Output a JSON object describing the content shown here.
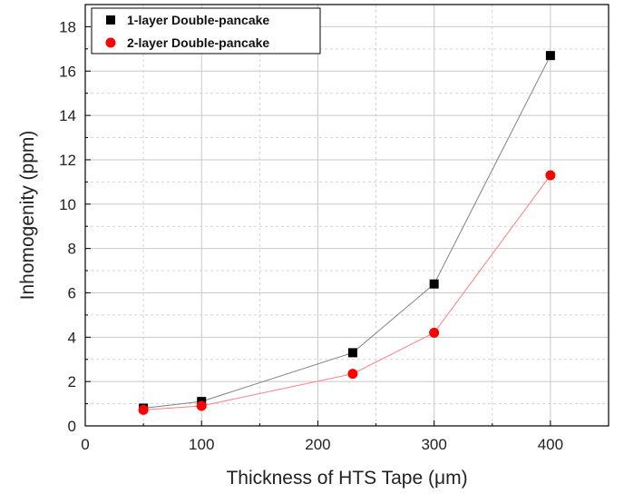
{
  "chart_data": {
    "type": "line",
    "xlabel": "Thickness of HTS Tape (μm)",
    "ylabel": "Inhomogenity (ppm)",
    "xlim": [
      0,
      450
    ],
    "ylim": [
      0,
      19
    ],
    "xticks": [
      0,
      100,
      200,
      300,
      400
    ],
    "yticks": [
      0,
      2,
      4,
      6,
      8,
      10,
      12,
      14,
      16,
      18
    ],
    "grid": true,
    "legend_position": "top-left",
    "series": [
      {
        "name": "1-layer Double-pancake",
        "marker": "square",
        "color": "#000000",
        "line_color": "#808080",
        "x": [
          50,
          100,
          230,
          300,
          400
        ],
        "y": [
          0.8,
          1.1,
          3.3,
          6.4,
          16.7
        ]
      },
      {
        "name": "2-layer Double-pancake",
        "marker": "circle",
        "color": "#ff0000",
        "line_color": "#ff8080",
        "x": [
          50,
          100,
          230,
          300,
          400
        ],
        "y": [
          0.72,
          0.9,
          2.35,
          4.2,
          11.3
        ]
      }
    ]
  }
}
